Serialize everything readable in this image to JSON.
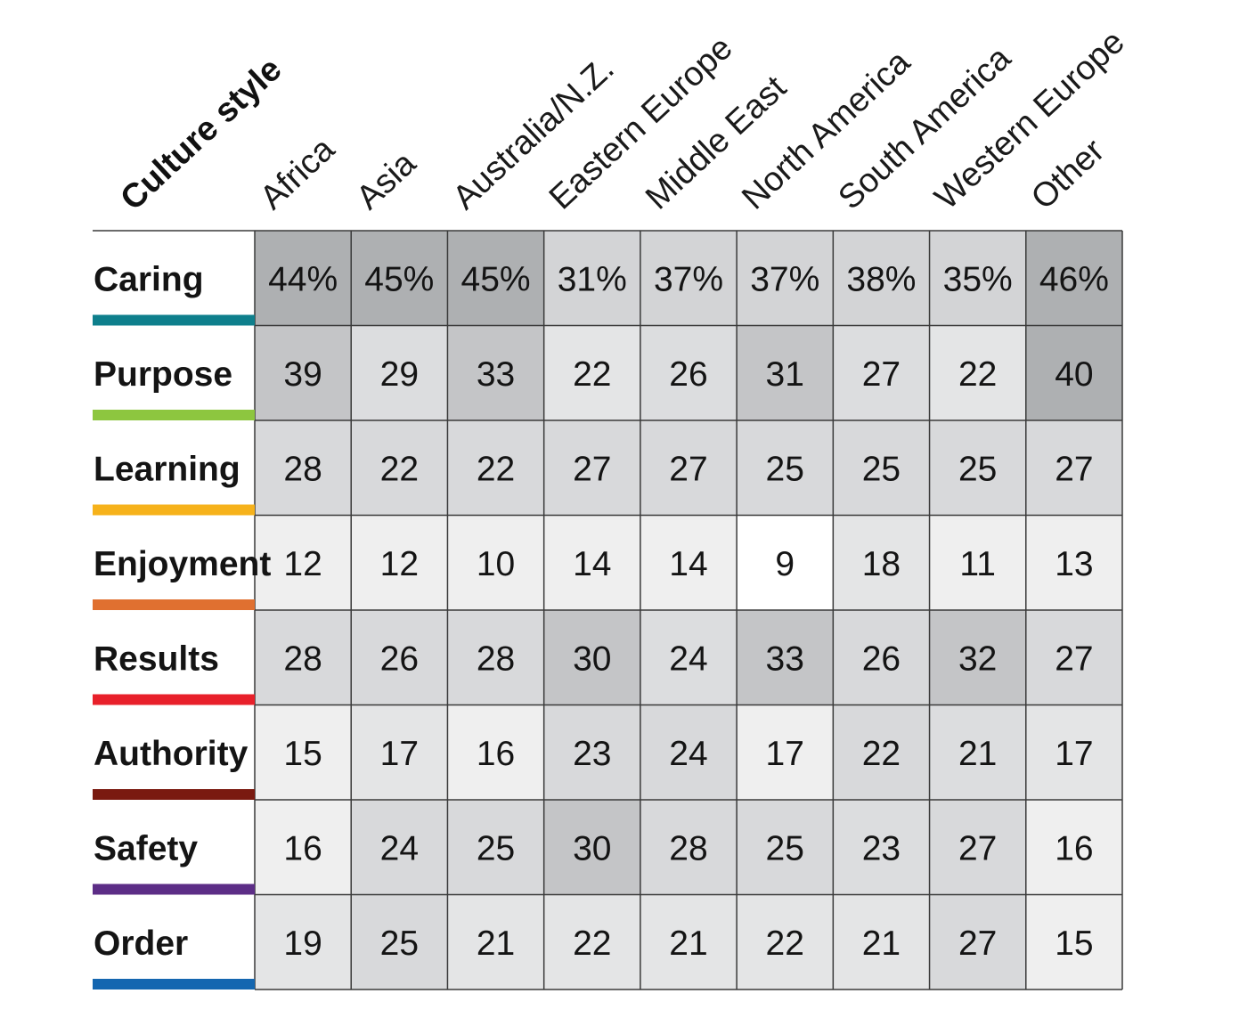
{
  "chart_data": {
    "type": "heatmap",
    "title": "Culture style",
    "columns": [
      "Africa",
      "Asia",
      "Australia/N.Z.",
      "Eastern Europe",
      "Middle East",
      "North America",
      "South America",
      "Western Europe",
      "Other"
    ],
    "rows": [
      {
        "label": "Caring",
        "color": "#0e7f8c",
        "values": [
          44,
          45,
          45,
          31,
          37,
          37,
          38,
          35,
          46
        ],
        "suffix": "%"
      },
      {
        "label": "Purpose",
        "color": "#8dc63f",
        "values": [
          39,
          29,
          33,
          22,
          26,
          31,
          27,
          22,
          40
        ],
        "suffix": ""
      },
      {
        "label": "Learning",
        "color": "#f6b21b",
        "values": [
          28,
          22,
          22,
          27,
          27,
          25,
          25,
          25,
          27
        ],
        "suffix": ""
      },
      {
        "label": "Enjoyment",
        "color": "#e07030",
        "values": [
          12,
          12,
          10,
          14,
          14,
          9,
          18,
          11,
          13
        ],
        "suffix": ""
      },
      {
        "label": "Results",
        "color": "#e8202a",
        "values": [
          28,
          26,
          28,
          30,
          24,
          33,
          26,
          32,
          27
        ],
        "suffix": ""
      },
      {
        "label": "Authority",
        "color": "#7a1a10",
        "values": [
          15,
          17,
          16,
          23,
          24,
          17,
          22,
          21,
          17
        ],
        "suffix": ""
      },
      {
        "label": "Safety",
        "color": "#5c2d86",
        "values": [
          16,
          24,
          25,
          30,
          28,
          25,
          23,
          27,
          16
        ],
        "suffix": ""
      },
      {
        "label": "Order",
        "color": "#1466b0",
        "values": [
          19,
          25,
          21,
          22,
          21,
          22,
          21,
          27,
          15
        ],
        "suffix": ""
      }
    ],
    "shading": [
      [
        "#aeb0b2",
        "#aeb0b2",
        "#aeb0b2",
        "#d3d4d6",
        "#d3d4d6",
        "#d3d4d6",
        "#d3d4d6",
        "#d3d4d6",
        "#aeb0b2"
      ],
      [
        "#c4c5c7",
        "#dcdddf",
        "#c4c5c7",
        "#e4e5e6",
        "#dcdddf",
        "#c4c5c7",
        "#dcdddf",
        "#e4e5e6",
        "#aeb0b2"
      ],
      [
        "#d8d9db",
        "#d8d9db",
        "#d8d9db",
        "#d8d9db",
        "#d8d9db",
        "#d8d9db",
        "#d8d9db",
        "#d8d9db",
        "#d8d9db"
      ],
      [
        "#efefef",
        "#efefef",
        "#efefef",
        "#efefef",
        "#efefef",
        "#ffffff",
        "#e4e5e6",
        "#efefef",
        "#efefef"
      ],
      [
        "#d8d9db",
        "#d8d9db",
        "#d8d9db",
        "#c4c5c7",
        "#dcdddf",
        "#c4c5c7",
        "#d8d9db",
        "#c4c5c7",
        "#d8d9db"
      ],
      [
        "#efefef",
        "#e4e5e6",
        "#efefef",
        "#d8d9db",
        "#d8d9db",
        "#efefef",
        "#d8d9db",
        "#dcdddf",
        "#e4e5e6"
      ],
      [
        "#efefef",
        "#d8d9db",
        "#d8d9db",
        "#c4c5c7",
        "#d8d9db",
        "#d8d9db",
        "#dcdddf",
        "#d8d9db",
        "#efefef"
      ],
      [
        "#e4e5e6",
        "#d8d9db",
        "#e4e5e6",
        "#e4e5e6",
        "#e4e5e6",
        "#e4e5e6",
        "#e4e5e6",
        "#d8d9db",
        "#efefef"
      ]
    ]
  }
}
